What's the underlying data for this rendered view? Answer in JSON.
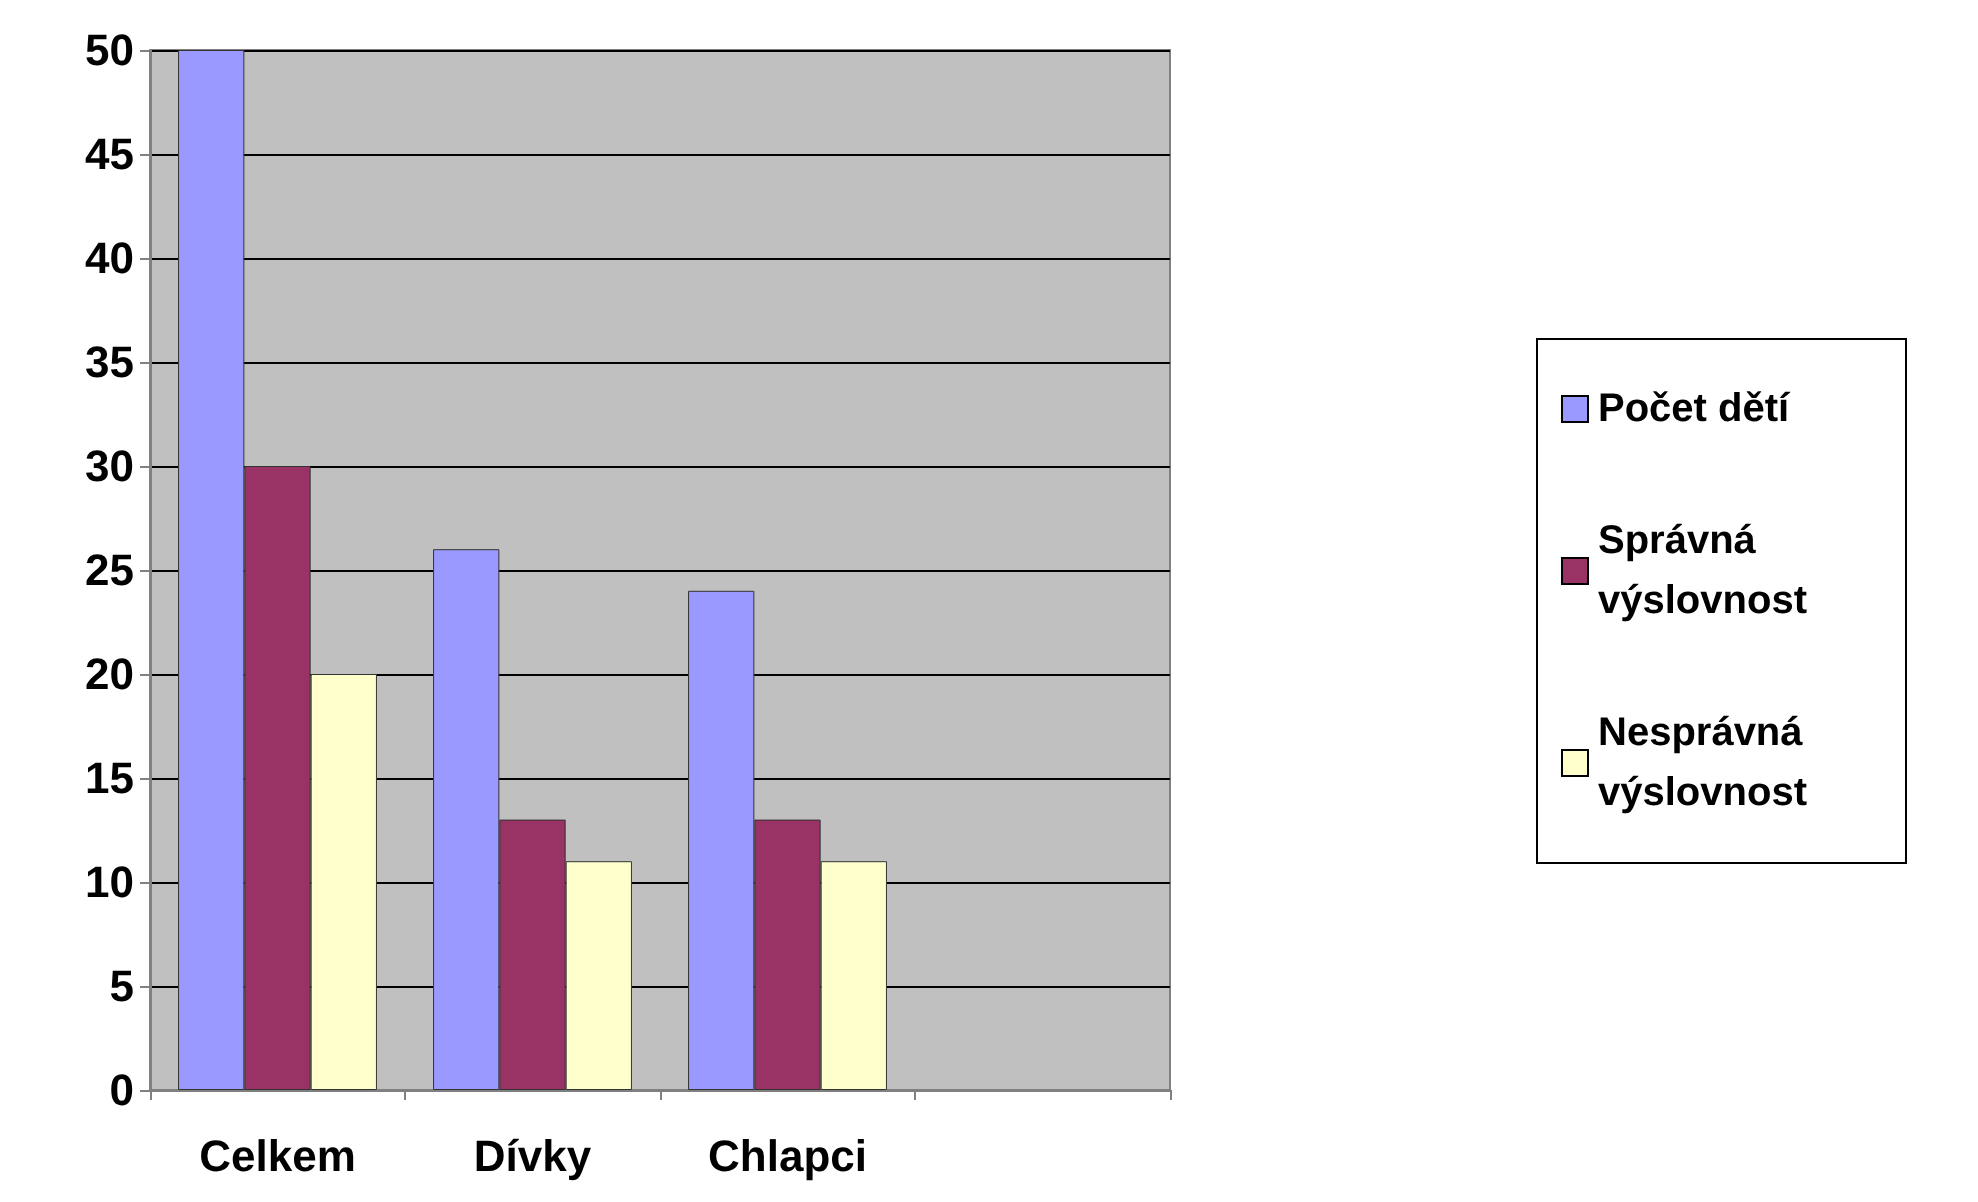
{
  "chart_data": {
    "type": "bar",
    "categories": [
      "Celkem",
      "Dívky",
      "Chlapci",
      null
    ],
    "series": [
      {
        "name": "Počet dětí",
        "color": "#9999ff",
        "values": [
          50,
          26,
          24,
          null
        ]
      },
      {
        "name": "Správná výslovnost",
        "color": "#993366",
        "values": [
          30,
          13,
          13,
          null
        ]
      },
      {
        "name": "Nesprávná výslovnost",
        "color": "#ffffcc",
        "values": [
          20,
          11,
          11,
          null
        ]
      }
    ],
    "ylim": [
      0,
      50
    ],
    "yticks": [
      0,
      5,
      10,
      15,
      20,
      25,
      30,
      35,
      40,
      45,
      50
    ],
    "grid": "y",
    "legend": "right"
  }
}
